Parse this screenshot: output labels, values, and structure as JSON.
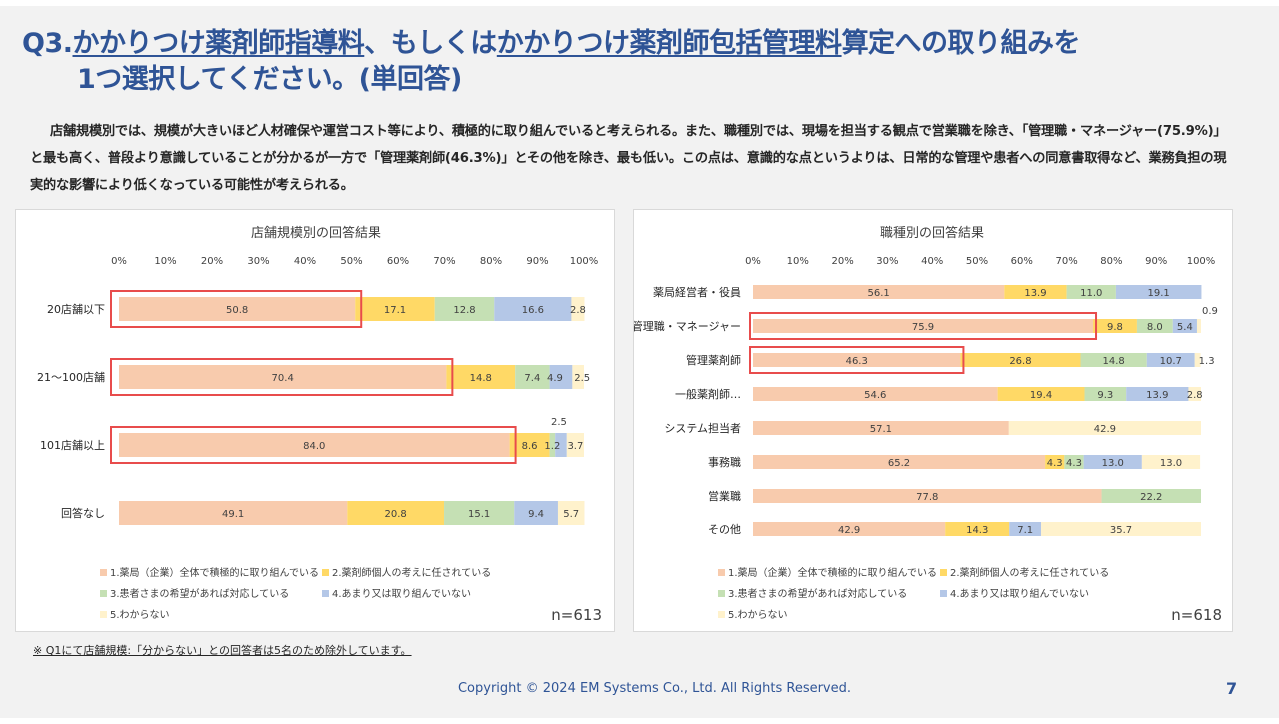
{
  "slide": {
    "title_prefix": "Q3.",
    "title_ul1": "かかりつけ薬剤師指導料",
    "title_mid": "、もしくは",
    "title_ul2": "かかりつけ薬剤師包括管理料",
    "title_suffix": "算定への取り組みを",
    "title_line2": "1つ選択してください。(単回答)",
    "description": "店舗規模別では、規模が大きいほど人材確保や運営コスト等により、積極的に取り組んでいると考えられる。また、職種別では、現場を担当する観点で営業職を除き、「管理職・マネージャー(75.9%)」と最も高く、普段より意識していることが分かるが一方で「管理薬剤師(46.3%)」とその他を除き、最も低い。この点は、意識的な点というよりは、日常的な管理や患者への同意書取得など、業務負担の現実的な影響により低くなっている可能性が考えられる。",
    "footnote": "※ Q1にて店舗規模:「分からない」との回答者は5名のため除外しています。",
    "copyright": "Copyright © 2024 EM Systems Co., Ltd. All Rights Reserved.",
    "page_number": "7"
  },
  "colors": {
    "s1": "#f8cbad",
    "s2": "#ffd966",
    "s3": "#c5e0b4",
    "s4": "#b4c7e7",
    "s5": "#fff2cc",
    "highlight": "#e84c4c"
  },
  "chart_data": [
    {
      "type": "bar",
      "stacked": true,
      "orientation": "horizontal",
      "title": "店舗規模別の回答結果",
      "n_label": "n=613",
      "xlim": [
        0,
        100
      ],
      "x_ticks": [
        "0%",
        "10%",
        "20%",
        "30%",
        "40%",
        "50%",
        "60%",
        "70%",
        "80%",
        "90%",
        "100%"
      ],
      "categories": [
        "20店舗以下",
        "21～100店舗",
        "101店舗以上",
        "回答なし"
      ],
      "highlighted": [
        "20店舗以下",
        "21～100店舗",
        "101店舗以上"
      ],
      "series": [
        {
          "name": "1.薬局（企業）全体で積極的に取り組んでいる",
          "values": [
            50.8,
            70.4,
            84.0,
            49.1
          ]
        },
        {
          "name": "2.薬剤師個人の考えに任されている",
          "values": [
            17.1,
            14.8,
            8.6,
            20.8
          ]
        },
        {
          "name": "3.患者さまの希望があれば対応している",
          "values": [
            12.8,
            7.4,
            1.2,
            15.1
          ]
        },
        {
          "name": "4.あまり又は取り組んでいない",
          "values": [
            16.6,
            4.9,
            2.5,
            9.4
          ]
        },
        {
          "name": "5.わからない",
          "values": [
            2.8,
            2.5,
            3.7,
            5.7
          ]
        }
      ]
    },
    {
      "type": "bar",
      "stacked": true,
      "orientation": "horizontal",
      "title": "職種別の回答結果",
      "n_label": "n=618",
      "xlim": [
        0,
        100
      ],
      "x_ticks": [
        "0%",
        "10%",
        "20%",
        "30%",
        "40%",
        "50%",
        "60%",
        "70%",
        "80%",
        "90%",
        "100%"
      ],
      "categories": [
        "薬局経営者・役員",
        "管理職・マネージャー",
        "管理薬剤師",
        "一般薬剤師…",
        "システム担当者",
        "事務職",
        "営業職",
        "その他"
      ],
      "highlighted": [
        "管理職・マネージャー",
        "管理薬剤師"
      ],
      "series": [
        {
          "name": "1.薬局（企業）全体で積極的に取り組んでいる",
          "values": [
            56.1,
            75.9,
            46.3,
            54.6,
            57.1,
            65.2,
            77.8,
            42.9
          ]
        },
        {
          "name": "2.薬剤師個人の考えに任されている",
          "values": [
            13.9,
            9.8,
            26.8,
            19.4,
            0,
            4.3,
            0,
            14.3
          ]
        },
        {
          "name": "3.患者さまの希望があれば対応している",
          "values": [
            11.0,
            8.0,
            14.8,
            9.3,
            0,
            4.3,
            22.2,
            0
          ]
        },
        {
          "name": "4.あまり又は取り組んでいない",
          "values": [
            19.1,
            5.4,
            10.7,
            13.9,
            0,
            13.0,
            0,
            7.1
          ]
        },
        {
          "name": "5.わからない",
          "values": [
            0,
            0.9,
            1.3,
            2.8,
            42.9,
            13.0,
            0,
            35.7
          ]
        }
      ]
    }
  ]
}
